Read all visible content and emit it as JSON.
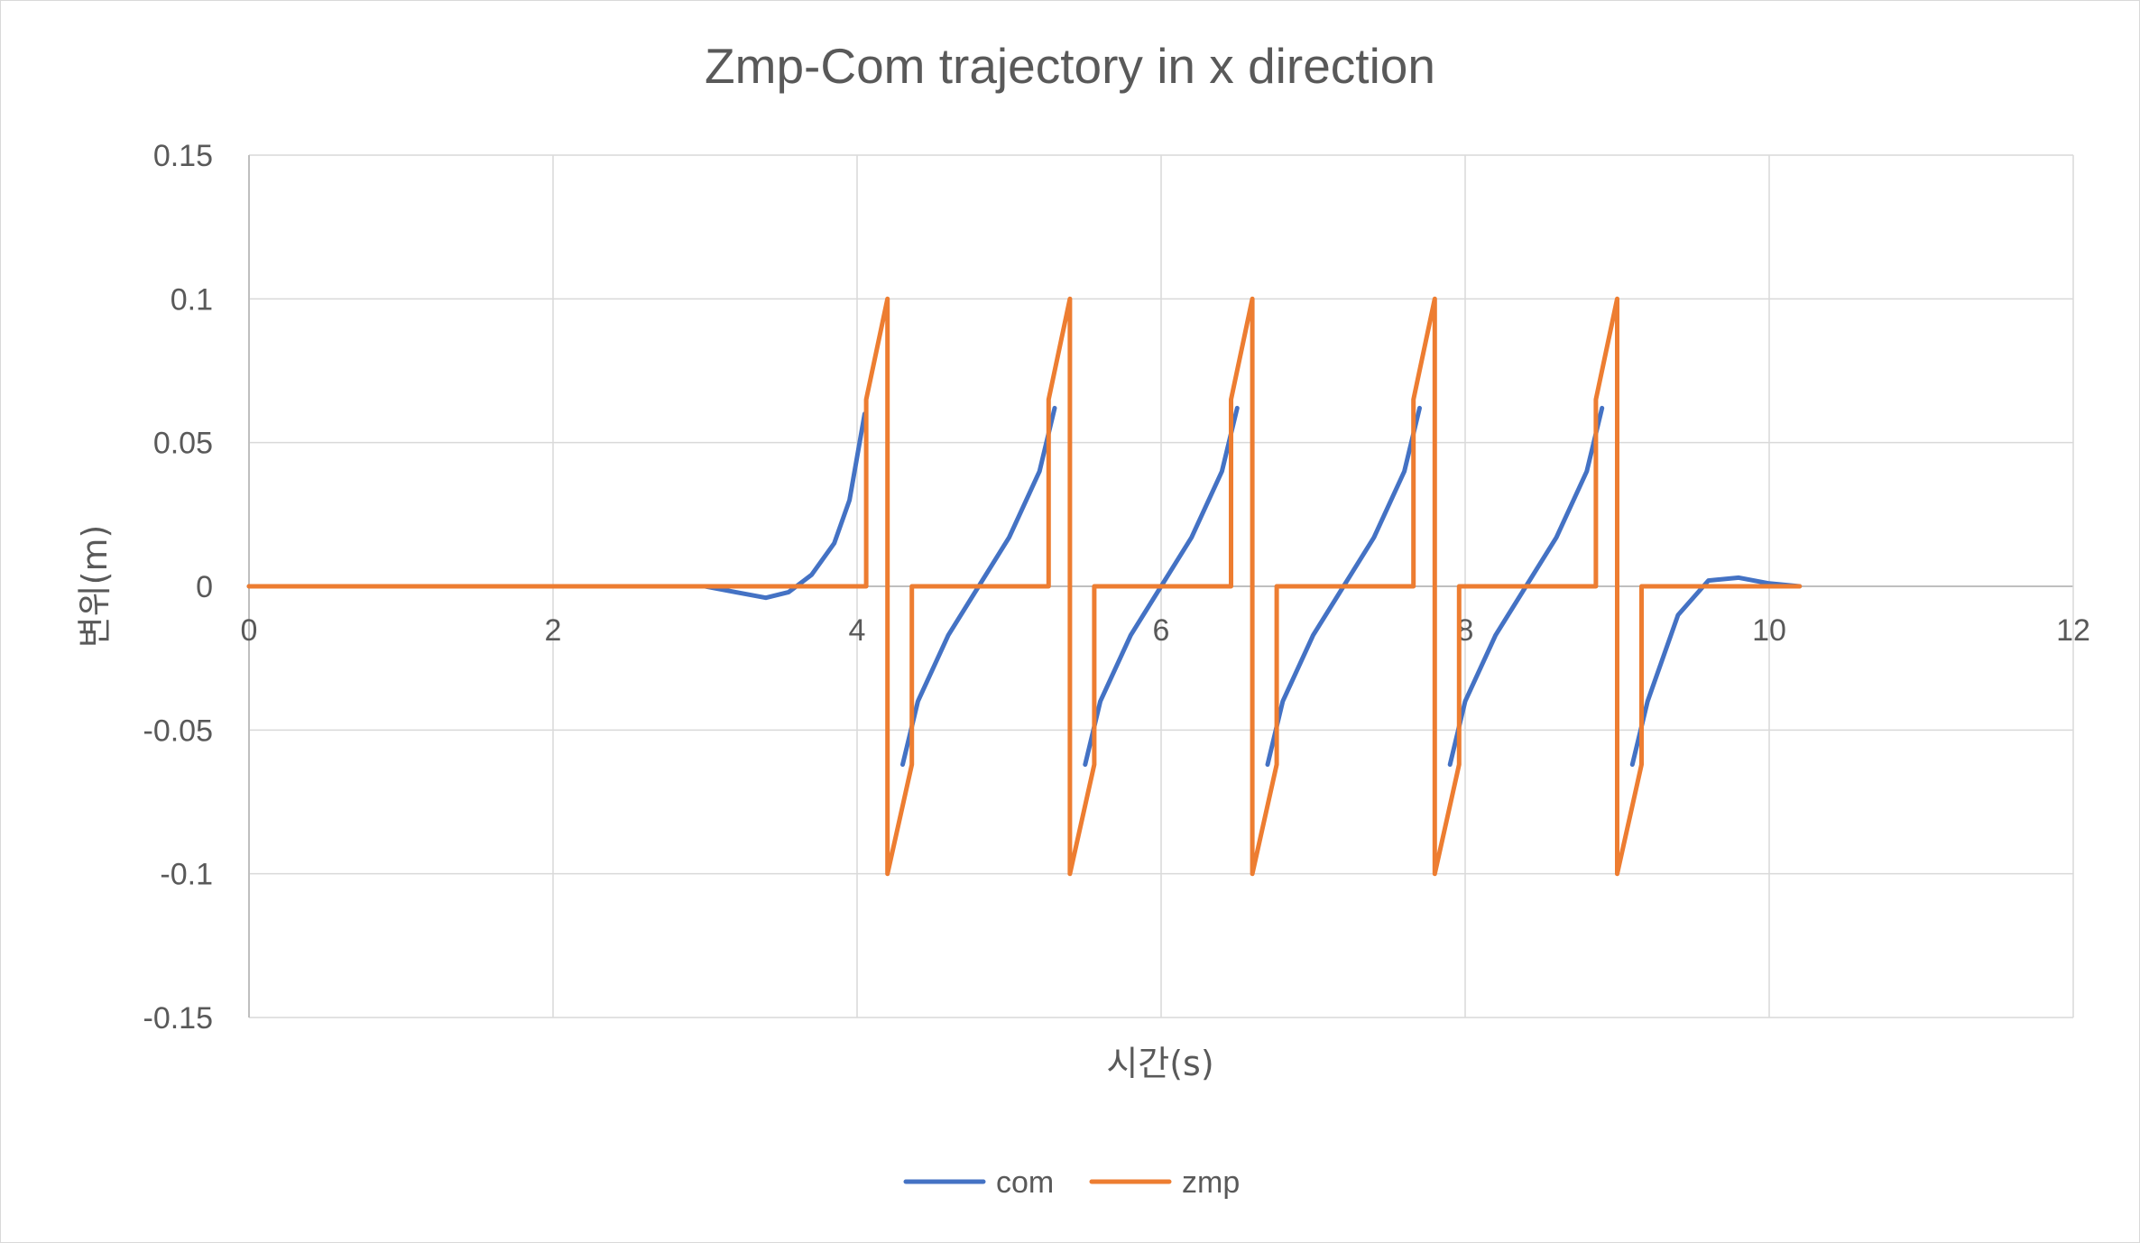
{
  "chart_data": {
    "type": "line",
    "title": "Zmp-Com trajectory in x direction",
    "xlabel": "시간(s)",
    "ylabel": "변위(m)",
    "xlim": [
      0,
      12
    ],
    "ylim": [
      -0.15,
      0.15
    ],
    "x_ticks": [
      0,
      2,
      4,
      6,
      8,
      10,
      12
    ],
    "y_ticks": [
      -0.15,
      -0.1,
      -0.05,
      0,
      0.05,
      0.1,
      0.15
    ],
    "x_tick_labels": [
      "0",
      "2",
      "4",
      "6",
      "8",
      "10",
      "12"
    ],
    "y_tick_labels": [
      "-0.15",
      "-0.1",
      "-0.05",
      "0",
      "0.05",
      "0.1",
      "0.15"
    ],
    "grid": true,
    "legend_position": "bottom",
    "series": [
      {
        "name": "com",
        "color": "#4472C4",
        "x": [
          0,
          3.0,
          3.2,
          3.4,
          3.55,
          3.7,
          3.85,
          3.95,
          4.05,
          4.2,
          4.3,
          4.4,
          4.6,
          4.8,
          5.0,
          5.2,
          5.3,
          5.4,
          5.5,
          5.6,
          5.8,
          6.0,
          6.2,
          6.4,
          6.5,
          6.6,
          6.7,
          6.8,
          7.0,
          7.2,
          7.4,
          7.6,
          7.7,
          7.8,
          7.9,
          8.0,
          8.2,
          8.4,
          8.6,
          8.8,
          8.9,
          9.0,
          9.1,
          9.2,
          9.4,
          9.6,
          9.8,
          10.0,
          10.2
        ],
        "y": [
          0,
          0,
          -0.002,
          -0.004,
          -0.002,
          0.004,
          0.015,
          0.03,
          0.06,
          null,
          -0.062,
          -0.04,
          -0.017,
          0,
          0.017,
          0.04,
          0.062,
          null,
          -0.062,
          -0.04,
          -0.017,
          0,
          0.017,
          0.04,
          0.062,
          null,
          -0.062,
          -0.04,
          -0.017,
          0,
          0.017,
          0.04,
          0.062,
          null,
          -0.062,
          -0.04,
          -0.017,
          0,
          0.017,
          0.04,
          0.062,
          null,
          -0.062,
          -0.04,
          -0.01,
          0.002,
          0.003,
          0.001,
          0
        ]
      },
      {
        "name": "zmp",
        "color": "#ED7D31",
        "x": [
          0,
          4.06,
          4.06,
          4.2,
          4.2,
          4.2,
          4.36,
          4.36,
          5.26,
          5.26,
          5.4,
          5.4,
          5.4,
          5.56,
          5.56,
          6.46,
          6.46,
          6.6,
          6.6,
          6.6,
          6.76,
          6.76,
          7.66,
          7.66,
          7.8,
          7.8,
          7.8,
          7.96,
          7.96,
          8.86,
          8.86,
          9.0,
          9.0,
          9.0,
          9.16,
          9.16,
          10.2
        ],
        "y": [
          0,
          0,
          0.065,
          0.1,
          -0.1,
          -0.1,
          -0.062,
          0,
          0,
          0.065,
          0.1,
          -0.1,
          -0.1,
          -0.062,
          0,
          0,
          0.065,
          0.1,
          -0.1,
          -0.1,
          -0.062,
          0,
          0,
          0.065,
          0.1,
          -0.1,
          -0.1,
          -0.062,
          0,
          0,
          0.065,
          0.1,
          -0.1,
          -0.1,
          -0.062,
          0,
          0
        ]
      }
    ]
  }
}
